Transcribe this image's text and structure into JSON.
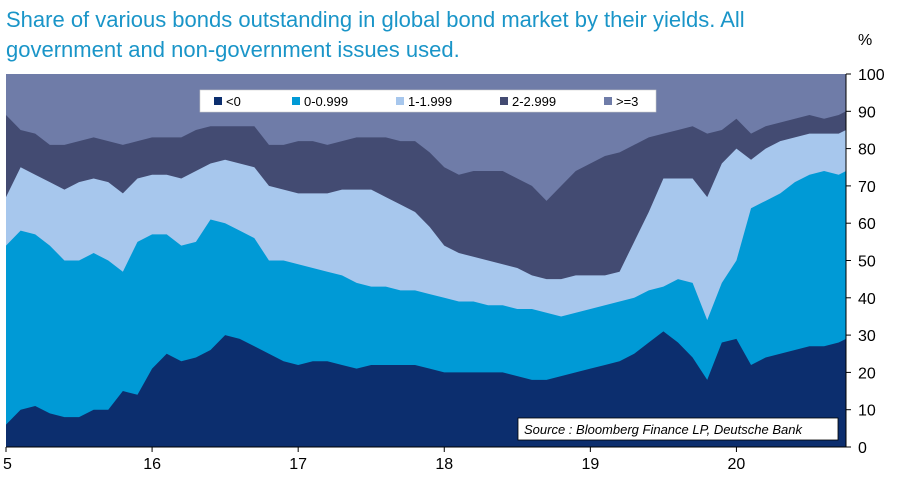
{
  "chart_data": {
    "type": "area",
    "stacked": true,
    "title": "Share of various bonds outstanding in global bond market by their yields. All government and non-government issues used.",
    "y_unit": "%",
    "ylim": [
      0,
      100
    ],
    "y_ticks": [
      "0",
      "10",
      "20",
      "30",
      "40",
      "50",
      "60",
      "70",
      "80",
      "90",
      "100"
    ],
    "xlim": [
      2015.0,
      2020.75
    ],
    "x_ticks": [
      {
        "x": 2015.0,
        "label": "5"
      },
      {
        "x": 2016.0,
        "label": "16"
      },
      {
        "x": 2017.0,
        "label": "17"
      },
      {
        "x": 2018.0,
        "label": "18"
      },
      {
        "x": 2019.0,
        "label": "19"
      },
      {
        "x": 2020.0,
        "label": "20"
      }
    ],
    "x": [
      2015.0,
      2015.1,
      2015.2,
      2015.3,
      2015.4,
      2015.5,
      2015.6,
      2015.7,
      2015.8,
      2015.9,
      2016.0,
      2016.1,
      2016.2,
      2016.3,
      2016.4,
      2016.5,
      2016.6,
      2016.7,
      2016.8,
      2016.9,
      2017.0,
      2017.1,
      2017.2,
      2017.3,
      2017.4,
      2017.5,
      2017.6,
      2017.7,
      2017.8,
      2017.9,
      2018.0,
      2018.1,
      2018.2,
      2018.3,
      2018.4,
      2018.5,
      2018.6,
      2018.7,
      2018.8,
      2018.9,
      2019.0,
      2019.1,
      2019.2,
      2019.3,
      2019.4,
      2019.5,
      2019.6,
      2019.7,
      2019.8,
      2019.9,
      2020.0,
      2020.1,
      2020.2,
      2020.3,
      2020.4,
      2020.5,
      2020.6,
      2020.7,
      2020.75
    ],
    "series": [
      {
        "name": "<0",
        "color": "#0c2e6e",
        "values": [
          6,
          10,
          11,
          9,
          8,
          8,
          10,
          10,
          15,
          14,
          21,
          25,
          23,
          24,
          26,
          30,
          29,
          27,
          25,
          23,
          22,
          23,
          23,
          22,
          21,
          22,
          22,
          22,
          22,
          21,
          20,
          20,
          20,
          20,
          20,
          19,
          18,
          18,
          19,
          20,
          21,
          22,
          23,
          25,
          28,
          31,
          28,
          24,
          18,
          28,
          29,
          22,
          24,
          25,
          26,
          27,
          27,
          28,
          29
        ]
      },
      {
        "name": "0-0.999",
        "color": "#009ad6",
        "values": [
          54,
          58,
          57,
          54,
          50,
          50,
          52,
          50,
          47,
          55,
          57,
          57,
          54,
          55,
          61,
          60,
          58,
          56,
          50,
          50,
          49,
          48,
          47,
          46,
          44,
          43,
          43,
          42,
          42,
          41,
          40,
          39,
          39,
          38,
          38,
          37,
          37,
          36,
          35,
          36,
          37,
          38,
          39,
          40,
          42,
          43,
          45,
          44,
          34,
          44,
          50,
          64,
          66,
          68,
          71,
          73,
          74,
          73,
          74
        ]
      },
      {
        "name": "1-1.999",
        "color": "#a7c7ed",
        "values": [
          67,
          75,
          73,
          71,
          69,
          71,
          72,
          71,
          68,
          72,
          73,
          73,
          72,
          74,
          76,
          77,
          76,
          75,
          70,
          69,
          68,
          68,
          68,
          69,
          69,
          69,
          67,
          65,
          63,
          59,
          54,
          52,
          51,
          50,
          49,
          48,
          46,
          45,
          45,
          46,
          46,
          46,
          47,
          55,
          63,
          72,
          72,
          72,
          67,
          76,
          80,
          77,
          80,
          82,
          83,
          84,
          84,
          84,
          85
        ]
      },
      {
        "name": "2-2.999",
        "color": "#434b72",
        "values": [
          89,
          85,
          84,
          81,
          81,
          82,
          83,
          82,
          81,
          82,
          83,
          83,
          83,
          85,
          86,
          86,
          86,
          86,
          81,
          81,
          82,
          82,
          81,
          82,
          83,
          83,
          83,
          82,
          82,
          79,
          75,
          73,
          74,
          74,
          74,
          72,
          70,
          66,
          70,
          74,
          76,
          78,
          79,
          81,
          83,
          84,
          85,
          86,
          84,
          85,
          88,
          84,
          86,
          87,
          88,
          89,
          88,
          89,
          90
        ]
      },
      {
        "name": ">=3",
        "color": "#6f7ca8",
        "values": [
          100,
          100,
          100,
          100,
          100,
          100,
          100,
          100,
          100,
          100,
          100,
          100,
          100,
          100,
          100,
          100,
          100,
          100,
          100,
          100,
          100,
          100,
          100,
          100,
          100,
          100,
          100,
          100,
          100,
          100,
          100,
          100,
          100,
          100,
          100,
          100,
          100,
          100,
          100,
          100,
          100,
          100,
          100,
          100,
          100,
          100,
          100,
          100,
          100,
          100,
          100,
          100,
          100,
          100,
          100,
          100,
          100,
          100,
          100
        ]
      }
    ],
    "values_are_cumulative": true,
    "legend_placement": "top-center",
    "grid": false,
    "source": "Source : Bloomberg Finance LP, Deutsche Bank"
  }
}
